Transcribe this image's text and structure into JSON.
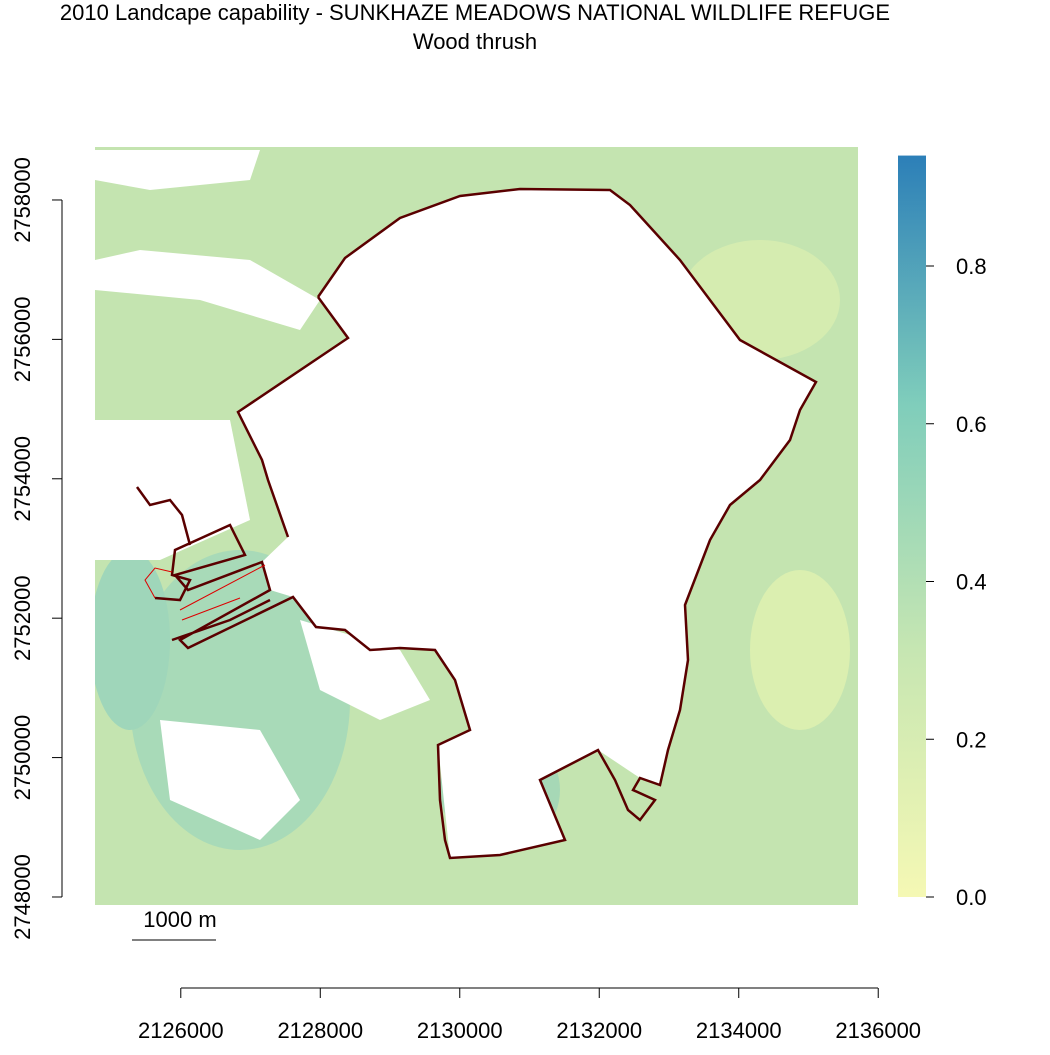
{
  "title": "2010 Landcape capability - SUNKHAZE MEADOWS NATIONAL WILDLIFE REFUGE",
  "subtitle": "Wood thrush",
  "map": {
    "xlim": [
      2124770,
      2135710
    ],
    "ylim": [
      2747885,
      2758760
    ]
  },
  "x_axis": {
    "ticks": [
      2126000,
      2128000,
      2130000,
      2132000,
      2134000,
      2136000
    ]
  },
  "y_axis": {
    "ticks": [
      2748000,
      2750000,
      2752000,
      2754000,
      2756000,
      2758000
    ]
  },
  "legend": {
    "lim": [
      0,
      0.94
    ],
    "colors": [
      "#f5f8b4",
      "#c6e6b2",
      "#7fcdbb",
      "#2c7fb8"
    ],
    "ticks": [
      {
        "value": 0,
        "label": "0.0"
      },
      0.2,
      0.4,
      0.6,
      0.8
    ]
  },
  "scale_bar": {
    "label": "1000 m"
  }
}
